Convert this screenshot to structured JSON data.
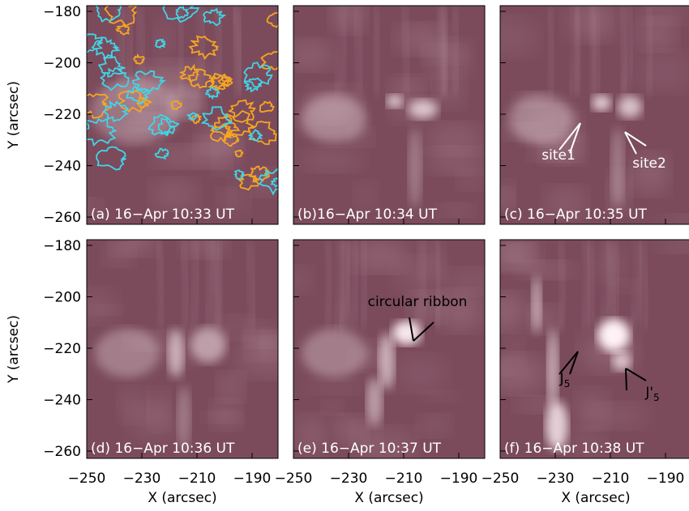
{
  "axes": {
    "x_label": "X (arcsec)",
    "y_label": "Y (arcsec)",
    "x_ticks": [
      "−250",
      "−230",
      "−210",
      "−190"
    ],
    "y_ticks": [
      "−180",
      "−200",
      "−220",
      "−240",
      "−260"
    ]
  },
  "panels": [
    {
      "label": "(a) 16−Apr 10:33 UT"
    },
    {
      "label": "(b)16−Apr 10:34 UT"
    },
    {
      "label": "(c) 16−Apr 10:35 UT",
      "annotations": [
        {
          "text": "site1"
        },
        {
          "text": "site2"
        }
      ]
    },
    {
      "label": "(d) 16−Apr 10:36 UT"
    },
    {
      "label": "(e) 16−Apr 10:37 UT",
      "annotations": [
        {
          "text": "circular ribbon"
        }
      ]
    },
    {
      "label": "(f) 16−Apr 10:38 UT",
      "annotations": [
        {
          "text": "J",
          "sub": "5"
        },
        {
          "text": "J'",
          "sub": "5"
        }
      ]
    }
  ]
}
